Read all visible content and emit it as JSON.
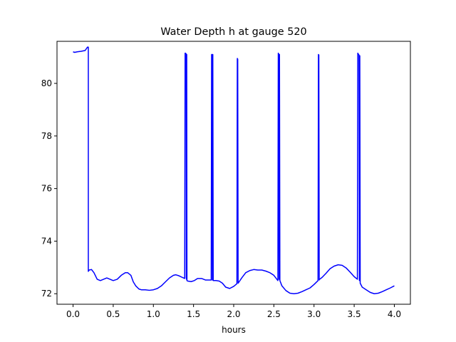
{
  "chart_data": {
    "type": "line",
    "title": "Water Depth h at gauge 520",
    "xlabel": "hours",
    "ylabel": "",
    "xlim": [
      -0.2,
      4.2
    ],
    "ylim": [
      71.6,
      81.6
    ],
    "xticks": [
      0.0,
      0.5,
      1.0,
      1.5,
      2.0,
      2.5,
      3.0,
      3.5,
      4.0
    ],
    "xtick_labels": [
      "0.0",
      "0.5",
      "1.0",
      "1.5",
      "2.0",
      "2.5",
      "3.0",
      "3.5",
      "4.0"
    ],
    "yticks": [
      72,
      74,
      76,
      78,
      80
    ],
    "ytick_labels": [
      "72",
      "74",
      "76",
      "78",
      "80"
    ],
    "grid": false,
    "series": [
      {
        "color": "#0000ff",
        "x": [
          0.0,
          0.02,
          0.05,
          0.1,
          0.15,
          0.18,
          0.19,
          0.19,
          0.2,
          0.23,
          0.26,
          0.3,
          0.34,
          0.38,
          0.42,
          0.46,
          0.5,
          0.55,
          0.6,
          0.65,
          0.68,
          0.72,
          0.75,
          0.78,
          0.82,
          0.85,
          0.9,
          0.95,
          1.0,
          1.05,
          1.1,
          1.15,
          1.2,
          1.25,
          1.28,
          1.32,
          1.36,
          1.39,
          1.395,
          1.4,
          1.408,
          1.41,
          1.413,
          1.415,
          1.418,
          1.43,
          1.47,
          1.51,
          1.55,
          1.6,
          1.65,
          1.68,
          1.72,
          1.725,
          1.73,
          1.735,
          1.74,
          1.745,
          1.78,
          1.82,
          1.86,
          1.9,
          1.95,
          2.0,
          2.04,
          2.045,
          2.05,
          2.055,
          2.06,
          2.1,
          2.15,
          2.2,
          2.25,
          2.3,
          2.35,
          2.4,
          2.45,
          2.5,
          2.55,
          2.555,
          2.56,
          2.565,
          2.57,
          2.575,
          2.6,
          2.65,
          2.7,
          2.75,
          2.8,
          2.85,
          2.9,
          2.95,
          3.0,
          3.05,
          3.055,
          3.06,
          3.065,
          3.07,
          3.1,
          3.15,
          3.2,
          3.25,
          3.3,
          3.35,
          3.4,
          3.45,
          3.5,
          3.54,
          3.545,
          3.55,
          3.56,
          3.565,
          3.57,
          3.575,
          3.6,
          3.65,
          3.7,
          3.75,
          3.8,
          3.85,
          3.9,
          3.95,
          4.0
        ],
        "y": [
          81.2,
          81.18,
          81.2,
          81.22,
          81.25,
          81.38,
          81.38,
          72.85,
          72.9,
          72.92,
          72.8,
          72.55,
          72.5,
          72.55,
          72.6,
          72.55,
          72.5,
          72.55,
          72.7,
          72.8,
          72.8,
          72.7,
          72.45,
          72.3,
          72.18,
          72.15,
          72.15,
          72.13,
          72.15,
          72.2,
          72.3,
          72.45,
          72.6,
          72.7,
          72.72,
          72.68,
          72.62,
          72.58,
          81.15,
          81.15,
          81.12,
          72.6,
          72.55,
          81.1,
          72.5,
          72.48,
          72.46,
          72.5,
          72.58,
          72.58,
          72.52,
          72.52,
          72.52,
          81.1,
          81.1,
          72.52,
          81.1,
          72.5,
          72.5,
          72.48,
          72.4,
          72.25,
          72.2,
          72.28,
          72.38,
          80.95,
          80.92,
          72.4,
          72.42,
          72.6,
          72.8,
          72.88,
          72.92,
          72.9,
          72.9,
          72.86,
          72.8,
          72.7,
          72.5,
          81.15,
          81.12,
          72.55,
          81.1,
          72.5,
          72.3,
          72.12,
          72.02,
          72.0,
          72.02,
          72.08,
          72.15,
          72.22,
          72.35,
          72.5,
          81.1,
          81.08,
          72.52,
          72.55,
          72.62,
          72.78,
          72.95,
          73.05,
          73.1,
          73.08,
          72.98,
          72.82,
          72.65,
          72.55,
          81.15,
          81.12,
          81.08,
          72.5,
          81.05,
          72.4,
          72.25,
          72.15,
          72.05,
          72.0,
          72.02,
          72.08,
          72.15,
          72.22,
          72.3
        ]
      }
    ]
  }
}
